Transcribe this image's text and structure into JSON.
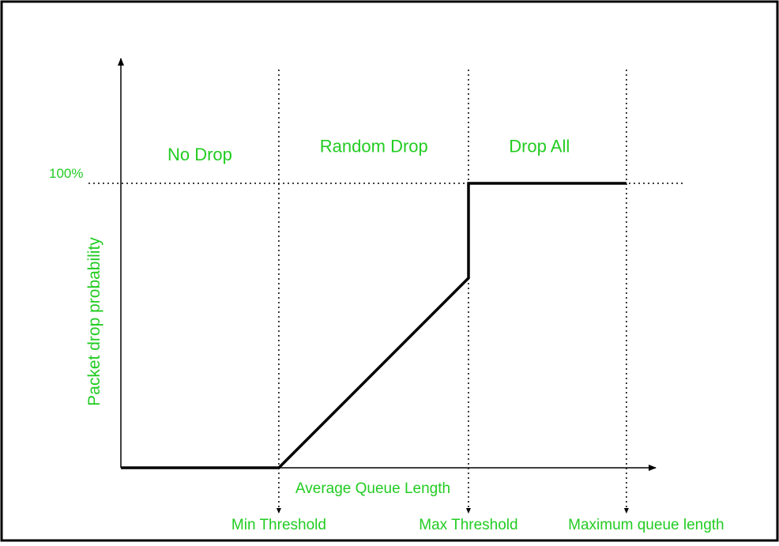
{
  "colors": {
    "label": "#22cc22",
    "line": "#000000",
    "guide": "#000000",
    "border": "#000000"
  },
  "chart_data": {
    "type": "line",
    "title": "",
    "xlabel": "Average Queue Length",
    "ylabel": "Packet drop probability",
    "y_tick_label": "100%",
    "xlim": [
      0,
      100
    ],
    "ylim": [
      0,
      100
    ],
    "series": [
      {
        "x": [
          0,
          29.4,
          64.7,
          64.7,
          94.1
        ],
        "y": [
          0,
          0,
          66.7,
          100,
          100
        ]
      }
    ],
    "thresholds": [
      {
        "x": 29.4,
        "label": "Min Threshold"
      },
      {
        "x": 64.7,
        "label": "Max Threshold"
      },
      {
        "x": 94.1,
        "label": "Maximum queue length"
      }
    ],
    "regions": [
      {
        "label": "No Drop",
        "x": 14.7,
        "y": 108
      },
      {
        "label": "Random Drop",
        "x": 47.1,
        "y": 111
      },
      {
        "label": "Drop All",
        "x": 77.9,
        "y": 111
      }
    ],
    "grid": false,
    "legend": "none"
  }
}
